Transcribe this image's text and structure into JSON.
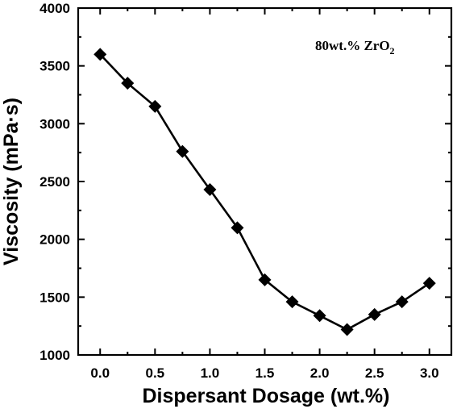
{
  "chart_data": {
    "type": "line",
    "xlabel": "Dispersant Dosage (wt.%)",
    "ylabel": "Viscosity (mPa·s)",
    "annotation": {
      "prefix": "80wt.% ZrO",
      "subscript": "2"
    },
    "xlim": [
      -0.2,
      3.2
    ],
    "ylim": [
      1000,
      4000
    ],
    "x_ticks": [
      "0.0",
      "0.5",
      "1.0",
      "1.5",
      "2.0",
      "2.5",
      "3.0"
    ],
    "y_ticks": [
      "1000",
      "1500",
      "2000",
      "2500",
      "3000",
      "3500",
      "4000"
    ],
    "marker": "diamond",
    "line_color": "#000000",
    "series": [
      {
        "x": [
          0.0,
          0.25,
          0.5,
          0.75,
          1.0,
          1.25,
          1.5,
          1.75,
          2.0,
          2.25,
          2.5,
          2.75,
          3.0
        ],
        "y": [
          3600,
          3350,
          3150,
          2760,
          2430,
          2100,
          1650,
          1460,
          1340,
          1220,
          1350,
          1460,
          1620
        ]
      }
    ]
  }
}
